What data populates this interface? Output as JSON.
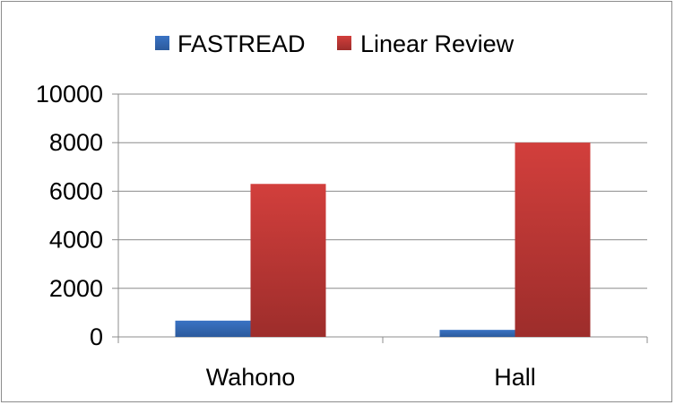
{
  "chart_data": {
    "type": "bar",
    "title": "",
    "xlabel": "",
    "ylabel": "",
    "categories": [
      "Wahono",
      "Hall"
    ],
    "series": [
      {
        "name": "FASTREAD",
        "values": [
          670,
          290
        ],
        "color": "#3a73c4",
        "color_dark": "#2c5a9c"
      },
      {
        "name": "Linear Review",
        "values": [
          6300,
          8000
        ],
        "color": "#d23f3c",
        "color_dark": "#9d2d2b"
      }
    ],
    "ylim": [
      0,
      10000
    ],
    "yticks": [
      0,
      2000,
      4000,
      6000,
      8000,
      10000
    ],
    "ytick_labels": [
      "0",
      "2000",
      "4000",
      "6000",
      "8000",
      "10000"
    ],
    "grid": true,
    "legend_position": "top"
  }
}
